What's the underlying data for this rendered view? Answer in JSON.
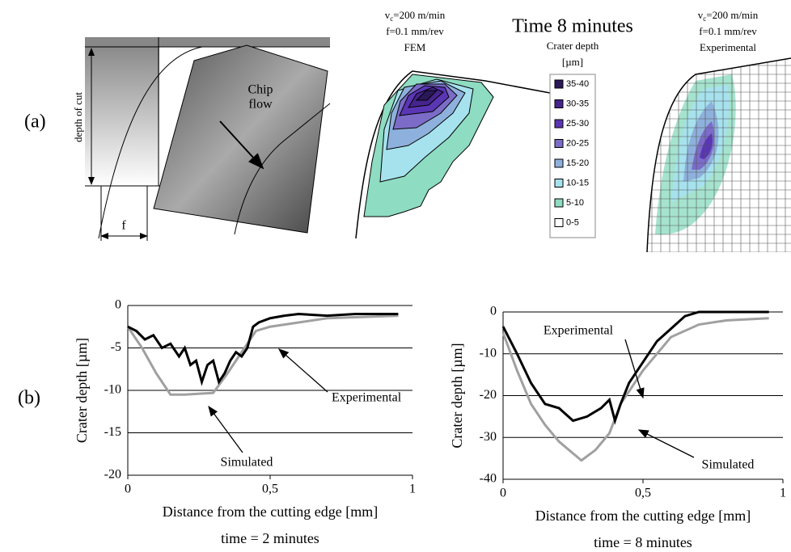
{
  "panel_a": {
    "label": "(a)",
    "photo": {
      "depth_label": "depth of cut",
      "feed_label": "f",
      "flow_label": [
        "Chip",
        "flow"
      ]
    },
    "fem": {
      "symbol": "v",
      "subscript": "c",
      "speed": "=200 m/min",
      "feed": "f=0.1 mm/rev",
      "method": "FEM"
    },
    "legend": {
      "title": "Time 8 minutes",
      "subtitle": [
        "Crater depth",
        "[µm]"
      ],
      "items": [
        {
          "label": "35-40",
          "color": "#2a1858"
        },
        {
          "label": "30-35",
          "color": "#45258c"
        },
        {
          "label": "25-30",
          "color": "#5a36b4"
        },
        {
          "label": "20-25",
          "color": "#7c6cc8"
        },
        {
          "label": "15-20",
          "color": "#8eb0dc"
        },
        {
          "label": "10-15",
          "color": "#a6e2ee"
        },
        {
          "label": "5-10",
          "color": "#8edcc2"
        },
        {
          "label": "0-5",
          "color": "#ffffff"
        }
      ]
    },
    "experimental": {
      "symbol": "v",
      "subscript": "c",
      "speed": "=200 m/min",
      "feed": "f=0.1 mm/rev",
      "method": "Experimental"
    }
  },
  "panel_b": {
    "label": "(b)"
  },
  "chart_data": [
    {
      "type": "line",
      "subtitle": "time = 2 minutes",
      "x_label": "Distance from the cutting edge [mm]",
      "y_label": "Crater depth [µm]",
      "xlim": [
        0,
        1
      ],
      "xticks": [
        0,
        {
          "value": 0.5,
          "label": "0,5"
        },
        1
      ],
      "ylim": [
        -20,
        0
      ],
      "yticks": [
        -20,
        -15,
        -10,
        -5,
        0
      ],
      "grid": true,
      "series": [
        {
          "name": "Experimental",
          "color": "#000000",
          "x": [
            0,
            0.03,
            0.06,
            0.09,
            0.12,
            0.15,
            0.18,
            0.2,
            0.22,
            0.24,
            0.26,
            0.28,
            0.3,
            0.32,
            0.34,
            0.36,
            0.38,
            0.4,
            0.42,
            0.44,
            0.46,
            0.5,
            0.55,
            0.6,
            0.7,
            0.8,
            0.95
          ],
          "values": [
            -2.5,
            -3,
            -4,
            -3.5,
            -5,
            -4.5,
            -6,
            -5,
            -7,
            -6.5,
            -9,
            -7,
            -6.5,
            -9,
            -8,
            -6.5,
            -5.5,
            -6,
            -5,
            -2.5,
            -2,
            -1.5,
            -1.2,
            -1,
            -1.2,
            -1,
            -1
          ]
        },
        {
          "name": "Simulated",
          "color": "#a0a0a0",
          "x": [
            0,
            0.05,
            0.1,
            0.15,
            0.2,
            0.3,
            0.35,
            0.4,
            0.45,
            0.5,
            0.6,
            0.7,
            0.95
          ],
          "values": [
            -2.5,
            -5,
            -8,
            -10.5,
            -10.5,
            -10.3,
            -8,
            -5.5,
            -3,
            -2.5,
            -2,
            -1.5,
            -1.2
          ]
        }
      ],
      "annotations": [
        "Experimental",
        "Simulated"
      ]
    },
    {
      "type": "line",
      "subtitle": "time = 8 minutes",
      "x_label": "Distance from the cutting edge [mm]",
      "y_label": "Crater depth [µm]",
      "xlim": [
        0,
        1
      ],
      "xticks": [
        0,
        {
          "value": 0.5,
          "label": "0,5"
        },
        1
      ],
      "ylim": [
        -40,
        0
      ],
      "yticks": [
        -40,
        -30,
        -20,
        -10,
        0
      ],
      "grid": true,
      "series": [
        {
          "name": "Experimental",
          "color": "#000000",
          "x": [
            0,
            0.05,
            0.1,
            0.15,
            0.2,
            0.25,
            0.3,
            0.35,
            0.38,
            0.4,
            0.42,
            0.45,
            0.5,
            0.55,
            0.6,
            0.65,
            0.7,
            0.8,
            0.9,
            0.95
          ],
          "values": [
            -3.5,
            -10,
            -17,
            -22,
            -23,
            -26,
            -25,
            -23,
            -21,
            -26,
            -22,
            -17,
            -12,
            -7,
            -4,
            -1,
            0,
            0,
            0,
            0
          ]
        },
        {
          "name": "Simulated",
          "color": "#a0a0a0",
          "x": [
            0,
            0.05,
            0.1,
            0.15,
            0.2,
            0.28,
            0.33,
            0.38,
            0.42,
            0.5,
            0.6,
            0.7,
            0.8,
            0.95
          ],
          "values": [
            -5,
            -14,
            -22,
            -27,
            -31,
            -35.5,
            -33,
            -29,
            -22,
            -14,
            -6,
            -3,
            -2,
            -1.5
          ]
        }
      ],
      "annotations": [
        "Experimental",
        "Simulated"
      ]
    }
  ]
}
